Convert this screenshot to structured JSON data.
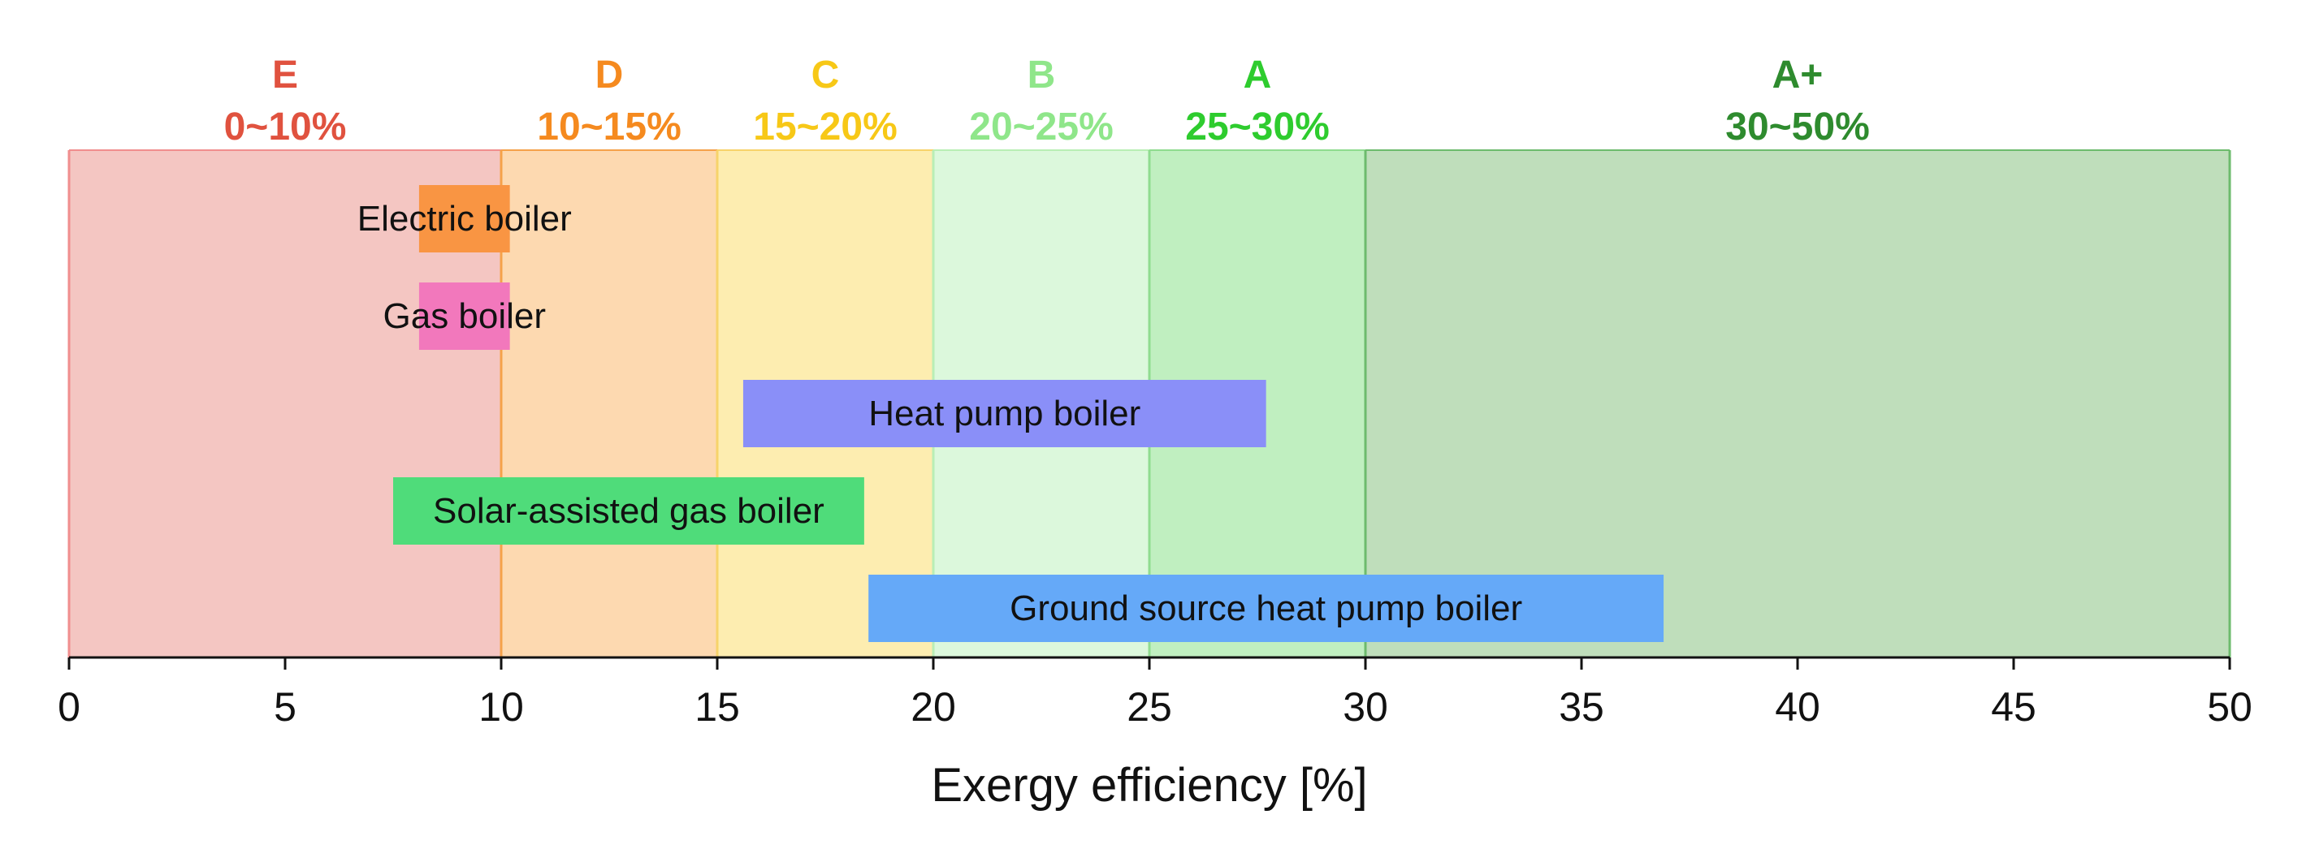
{
  "chart_data": {
    "type": "bar",
    "orientation": "horizontal-range",
    "xlabel": "Exergy efficiency [%]",
    "xlim": [
      0,
      50
    ],
    "xticks": [
      0,
      5,
      10,
      15,
      20,
      25,
      30,
      35,
      40,
      45,
      50
    ],
    "grades": [
      {
        "grade": "E",
        "range_label": "0~10%",
        "from": 0,
        "to": 10,
        "fill": "#f4c6c2",
        "text_color": "#e0523f",
        "line_color": "#f08e8e"
      },
      {
        "grade": "D",
        "range_label": "10~15%",
        "from": 10,
        "to": 15,
        "fill": "#fdd9b0",
        "text_color": "#f58a1f",
        "line_color": "#f5a24a"
      },
      {
        "grade": "C",
        "range_label": "15~20%",
        "from": 15,
        "to": 20,
        "fill": "#fdedb0",
        "text_color": "#f7c817",
        "line_color": "#f7d36a"
      },
      {
        "grade": "B",
        "range_label": "20~25%",
        "from": 20,
        "to": 25,
        "fill": "#dcf8dc",
        "text_color": "#8fe68a",
        "line_color": "#b9eeb5"
      },
      {
        "grade": "A",
        "range_label": "25~30%",
        "from": 25,
        "to": 30,
        "fill": "#c0efc0",
        "text_color": "#2ecc2e",
        "line_color": "#8fdc8f"
      },
      {
        "grade": "A+",
        "range_label": "30~50%",
        "from": 30,
        "to": 50,
        "fill": "#bfdebb",
        "text_color": "#2e8b2e",
        "line_color": "#6dbb6d"
      }
    ],
    "series": [
      {
        "name": "Electric boiler",
        "from": 8.1,
        "to": 10.2,
        "color": "#f99543"
      },
      {
        "name": "Gas boiler",
        "from": 8.1,
        "to": 10.2,
        "color": "#f278bc"
      },
      {
        "name": "Heat pump boiler",
        "from": 15.6,
        "to": 27.7,
        "color": "#8a8ff8"
      },
      {
        "name": "Solar-assisted gas boiler",
        "from": 7.5,
        "to": 18.4,
        "color": "#4fdc7a"
      },
      {
        "name": "Ground source heat pump boiler",
        "from": 18.5,
        "to": 36.9,
        "color": "#65a9f8"
      }
    ]
  }
}
